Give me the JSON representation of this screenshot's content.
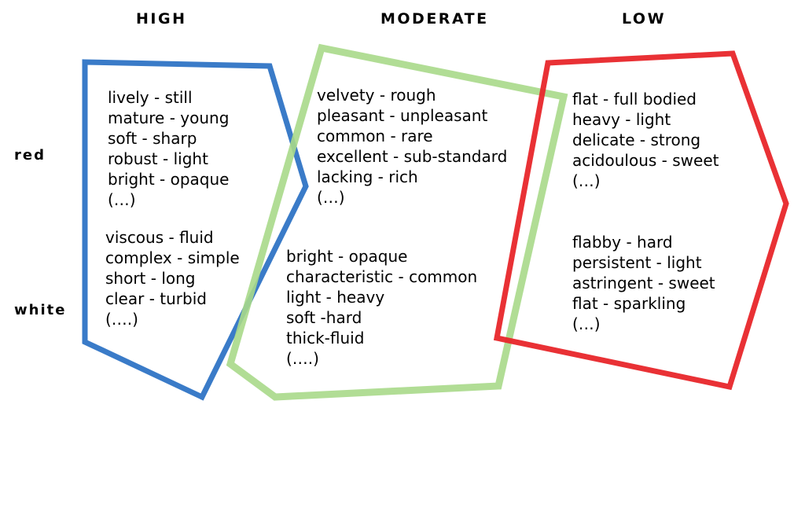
{
  "headers": {
    "high": "HIGH",
    "moderate": "MODERATE",
    "low": "LOW"
  },
  "rows": {
    "red": "red",
    "white": "white"
  },
  "colors": {
    "high": "#3a7bc8",
    "moderate": "#a8d98a",
    "low": "#e8262a"
  },
  "blocks": {
    "high_red": [
      "lively - still",
      "mature - young",
      "soft - sharp",
      "robust - light",
      "bright - opaque",
      "(…)"
    ],
    "high_white": [
      "viscous - fluid",
      "complex - simple",
      "short - long",
      "clear - turbid",
      "(….)"
    ],
    "moderate_red": [
      "velvety - rough",
      "pleasant - unpleasant",
      "common - rare",
      "excellent - sub-standard",
      "lacking - rich",
      "(…)"
    ],
    "moderate_white": [
      "bright - opaque",
      "characteristic - common",
      "light - heavy",
      "soft -hard",
      "thick-fluid",
      "(….)"
    ],
    "low_red": [
      "flat - full bodied",
      "heavy - light",
      "delicate - strong",
      "acidoulous - sweet",
      "(…)"
    ],
    "low_white": [
      "flabby - hard",
      "persistent - light",
      "astringent - sweet",
      "flat - sparkling",
      "(…)"
    ]
  }
}
